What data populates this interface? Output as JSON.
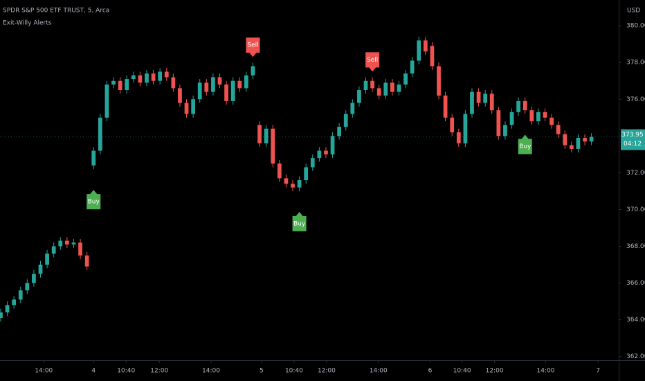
{
  "chart_data": {
    "type": "candlestick",
    "title": "SPDR S&P 500 ETF TRUST, 5, Arca",
    "indicator": "Exit-Willy Alerts",
    "currency": "USD",
    "countdown": "04:12",
    "up_color": "#26a69a",
    "down_color": "#ef5350",
    "open": [
      364.1,
      364.4,
      364.8,
      365.1,
      365.6,
      366.0,
      366.5,
      367.0,
      367.6,
      368.0,
      368.3,
      368.1,
      368.2,
      367.5,
      372.4,
      373.2,
      375.0,
      376.8,
      377.0,
      376.5,
      377.1,
      377.3,
      376.9,
      377.4,
      377.0,
      377.5,
      377.2,
      376.6,
      375.8,
      375.2,
      376.0,
      376.9,
      376.4,
      377.2,
      376.8,
      375.9,
      377.0,
      376.6,
      377.3,
      374.6,
      373.6,
      374.4,
      372.5,
      371.7,
      371.4,
      371.2,
      371.6,
      372.3,
      372.8,
      373.2,
      373.0,
      374.0,
      374.5,
      375.2,
      375.8,
      376.5,
      377.0,
      376.6,
      376.2,
      376.9,
      376.4,
      376.8,
      377.4,
      378.1,
      379.2,
      378.9,
      377.8,
      376.2,
      375.0,
      374.2,
      373.6,
      375.2,
      376.4,
      375.8,
      376.3,
      375.4,
      374.0,
      374.6,
      375.3,
      375.9,
      375.4,
      374.8,
      375.3,
      375.0,
      374.6,
      374.1,
      373.5,
      373.3,
      373.9,
      373.7
    ],
    "high": [
      364.6,
      365.0,
      365.3,
      365.8,
      366.2,
      366.7,
      367.2,
      367.8,
      368.2,
      368.5,
      368.5,
      368.4,
      368.4,
      367.7,
      373.4,
      375.2,
      377.0,
      377.2,
      377.2,
      377.3,
      377.5,
      377.5,
      377.6,
      377.6,
      377.7,
      377.7,
      377.4,
      376.8,
      376.0,
      376.2,
      377.1,
      377.1,
      377.4,
      377.4,
      377.0,
      377.2,
      377.2,
      377.5,
      378.0,
      374.8,
      374.6,
      374.6,
      372.7,
      371.9,
      371.6,
      371.8,
      372.5,
      373.0,
      373.4,
      373.4,
      374.2,
      374.7,
      375.4,
      376.0,
      376.7,
      377.2,
      377.2,
      376.8,
      377.1,
      377.1,
      377.0,
      377.6,
      378.3,
      379.4,
      379.4,
      379.1,
      378.0,
      376.4,
      375.2,
      374.4,
      375.4,
      376.6,
      376.6,
      376.5,
      376.5,
      375.6,
      374.8,
      375.5,
      376.1,
      376.1,
      375.6,
      375.5,
      375.5,
      375.2,
      374.8,
      374.3,
      373.7,
      374.1,
      374.1,
      374.15
    ],
    "low": [
      363.9,
      364.2,
      364.6,
      364.9,
      365.4,
      365.8,
      366.3,
      366.8,
      367.4,
      367.8,
      367.9,
      367.9,
      367.3,
      366.7,
      372.2,
      373.0,
      374.8,
      376.6,
      376.3,
      376.3,
      376.9,
      376.7,
      376.7,
      376.8,
      376.8,
      377.0,
      376.4,
      375.6,
      375.0,
      375.0,
      375.8,
      376.2,
      376.2,
      376.6,
      375.7,
      375.7,
      376.4,
      376.4,
      377.1,
      373.4,
      373.4,
      372.3,
      371.5,
      371.2,
      371.0,
      371.0,
      371.4,
      372.1,
      372.6,
      372.8,
      372.8,
      373.8,
      374.3,
      375.0,
      375.6,
      376.3,
      376.4,
      376.0,
      376.0,
      376.2,
      376.2,
      376.6,
      377.2,
      377.9,
      378.4,
      377.6,
      376.0,
      374.8,
      374.0,
      373.4,
      373.4,
      375.0,
      375.6,
      375.6,
      375.2,
      373.8,
      373.8,
      374.4,
      375.1,
      375.2,
      374.6,
      374.6,
      374.8,
      374.4,
      373.9,
      373.3,
      373.1,
      373.1,
      373.5,
      373.5
    ],
    "close": [
      364.4,
      364.8,
      365.1,
      365.6,
      366.0,
      366.5,
      367.0,
      367.6,
      368.0,
      368.3,
      368.1,
      368.2,
      367.5,
      366.9,
      373.2,
      375.0,
      376.8,
      377.0,
      376.5,
      377.1,
      377.3,
      376.9,
      377.4,
      377.0,
      377.5,
      377.2,
      376.6,
      375.8,
      375.2,
      376.0,
      376.9,
      376.4,
      377.2,
      376.8,
      375.9,
      377.0,
      376.6,
      377.3,
      377.8,
      373.6,
      374.4,
      372.5,
      371.7,
      371.4,
      371.2,
      371.6,
      372.3,
      372.8,
      373.2,
      373.0,
      374.0,
      374.5,
      375.2,
      375.8,
      376.5,
      377.0,
      376.6,
      376.2,
      376.9,
      376.4,
      376.8,
      377.4,
      378.1,
      379.2,
      378.6,
      377.8,
      376.2,
      375.0,
      374.2,
      373.6,
      375.2,
      376.4,
      375.8,
      376.3,
      375.4,
      374.0,
      374.6,
      375.3,
      375.9,
      375.4,
      374.8,
      375.3,
      375.0,
      374.6,
      374.1,
      373.5,
      373.3,
      373.9,
      373.7,
      373.95
    ],
    "signals": [
      {
        "index": 14,
        "label": "Buy",
        "color": "#4caf50"
      },
      {
        "index": 38,
        "label": "Sell",
        "color": "#ef5350"
      },
      {
        "index": 45,
        "label": "Buy",
        "color": "#4caf50"
      },
      {
        "index": 56,
        "label": "Sell",
        "color": "#ef5350"
      },
      {
        "index": 79,
        "label": "Buy",
        "color": "#4caf50"
      }
    ],
    "xlim": [
      -0.1,
      93
    ],
    "xticks": [
      {
        "value": 6.5,
        "label": "14:00"
      },
      {
        "value": 14,
        "label": "4"
      },
      {
        "value": 18.9,
        "label": "10:40"
      },
      {
        "value": 23.9,
        "label": "12:00"
      },
      {
        "value": 31.7,
        "label": "14:00"
      },
      {
        "value": 39.3,
        "label": "5"
      },
      {
        "value": 44.2,
        "label": "10:40"
      },
      {
        "value": 49.1,
        "label": "12:00"
      },
      {
        "value": 56.9,
        "label": "14:00"
      },
      {
        "value": 64.7,
        "label": "6"
      },
      {
        "value": 69.5,
        "label": "10:40"
      },
      {
        "value": 74.4,
        "label": "12:00"
      },
      {
        "value": 82.1,
        "label": "14:00"
      },
      {
        "value": 90.0,
        "label": "7"
      }
    ],
    "ylim": [
      361.8,
      381.4
    ],
    "yticks": [
      {
        "value": 362,
        "label": "362.00"
      },
      {
        "value": 364,
        "label": "364.00"
      },
      {
        "value": 366,
        "label": "366.00"
      },
      {
        "value": 368,
        "label": "368.00"
      },
      {
        "value": 370,
        "label": "370.00"
      },
      {
        "value": 372,
        "label": "372.00"
      },
      {
        "value": 374,
        "label": "374.00"
      },
      {
        "value": 376,
        "label": "376.00"
      },
      {
        "value": 378,
        "label": "378.00"
      },
      {
        "value": 380,
        "label": "380.00"
      }
    ]
  }
}
